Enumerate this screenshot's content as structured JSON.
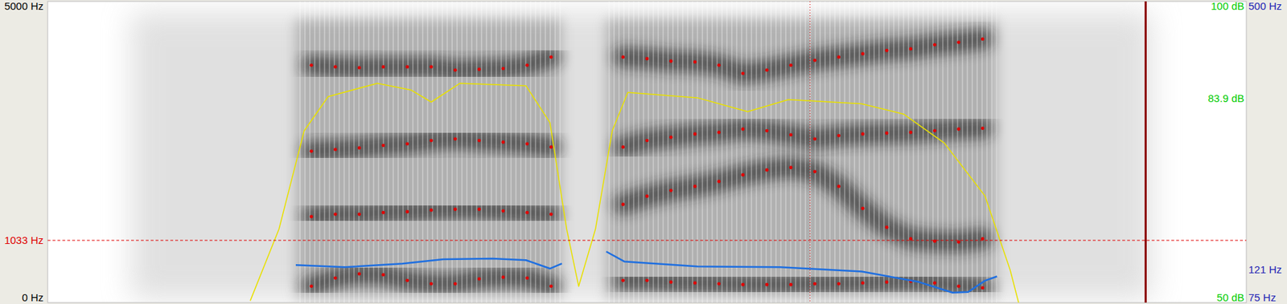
{
  "chart_data": [
    {
      "type": "scatter",
      "xlim": [
        0,
        1
      ],
      "ylim": [
        0,
        5000
      ],
      "yticks": [
        {
          "value": 0,
          "label": "0 Hz"
        },
        {
          "value": 5000,
          "label": "5000 Hz"
        },
        {
          "value": 1033,
          "label": "1033 Hz"
        }
      ],
      "tick_labels": "y",
      "cursor_x": [
        0.636,
        0.916
      ],
      "x": [
        0.22,
        0.24,
        0.26,
        0.28,
        0.3,
        0.32,
        0.34,
        0.36,
        0.38,
        0.4,
        0.42,
        0.48,
        0.5,
        0.52,
        0.54,
        0.56,
        0.58,
        0.6,
        0.62,
        0.64,
        0.66,
        0.68,
        0.7,
        0.72,
        0.74,
        0.76,
        0.78
      ],
      "series": [
        {
          "color": "#e00000",
          "marker": "dot",
          "values": [
            272,
            408,
            476,
            462,
            367,
            312,
            312,
            394,
            421,
            408,
            272,
            367,
            367,
            340,
            326,
            312,
            299,
            299,
            299,
            312,
            312,
            326,
            340,
            353,
            326,
            272,
            245
          ]
        },
        {
          "color": "#e00000",
          "marker": "dot",
          "values": [
            1427,
            1467,
            1467,
            1495,
            1508,
            1535,
            1549,
            1549,
            1522,
            1495,
            1467,
            1630,
            1766,
            1861,
            1929,
            2011,
            2120,
            2201,
            2242,
            2174,
            1929,
            1563,
            1250,
            1060,
            1019,
            1005,
            1060
          ]
        },
        {
          "color": "#e00000",
          "marker": "dot",
          "values": [
            2514,
            2541,
            2568,
            2609,
            2636,
            2690,
            2717,
            2690,
            2663,
            2636,
            2582,
            2582,
            2690,
            2745,
            2799,
            2826,
            2880,
            2853,
            2785,
            2717,
            2772,
            2799,
            2813,
            2826,
            2853,
            2880,
            2894
          ]
        },
        {
          "color": "#e00000",
          "marker": "dot",
          "values": [
            3940,
            3913,
            3899,
            3913,
            3913,
            3913,
            3859,
            3872,
            3886,
            3940,
            4076,
            4076,
            4049,
            4008,
            3995,
            3940,
            3804,
            3859,
            3940,
            4022,
            4076,
            4130,
            4185,
            4212,
            4280,
            4321,
            4375
          ]
        }
      ]
    },
    {
      "type": "line",
      "xlim": [
        0,
        1
      ],
      "ylim": [
        50,
        100
      ],
      "yticks": [
        {
          "value": 50,
          "label": "50 dB"
        },
        {
          "value": 100,
          "label": "100 dB"
        },
        {
          "value": 83.9,
          "label": "83.9 dB"
        }
      ],
      "tick_labels": "y",
      "x": [
        0.169,
        0.193,
        0.214,
        0.234,
        0.275,
        0.303,
        0.32,
        0.344,
        0.399,
        0.419,
        0.433,
        0.443,
        0.457,
        0.471,
        0.484,
        0.542,
        0.584,
        0.618,
        0.679,
        0.714,
        0.748,
        0.782,
        0.803,
        0.81
      ],
      "series": [
        {
          "color": "#e8e000",
          "line_style": "solid",
          "values": [
            50.3,
            62.2,
            78.5,
            84.2,
            86.4,
            85.3,
            83.3,
            86.4,
            86.0,
            79.9,
            62.2,
            52.7,
            62.2,
            78.5,
            84.9,
            84.0,
            81.7,
            83.7,
            83.0,
            81.3,
            76.5,
            67.7,
            55.4,
            50.0
          ]
        }
      ]
    },
    {
      "type": "line",
      "xlim": [
        0,
        1
      ],
      "ylim": [
        75,
        500
      ],
      "yticks": [
        {
          "value": 75,
          "label": "75 Hz"
        },
        {
          "value": 500,
          "label": "500 Hz"
        },
        {
          "value": 121,
          "label": "121 Hz"
        }
      ],
      "tick_labels": "y",
      "x": [
        0.207,
        0.248,
        0.296,
        0.33,
        0.371,
        0.399,
        0.419,
        0.429,
        0.45,
        0.466,
        0.481,
        0.542,
        0.611,
        0.679,
        0.727,
        0.755,
        0.768,
        0.782,
        0.792
      ],
      "series": [
        {
          "color": "#1f6fe0",
          "line_style": "solid",
          "values": [
            128,
            125,
            130,
            136,
            137,
            135,
            123,
            130,
            null,
            147,
            133,
            126,
            125,
            119,
            104,
            89,
            90,
            106,
            112
          ]
        }
      ]
    }
  ]
}
